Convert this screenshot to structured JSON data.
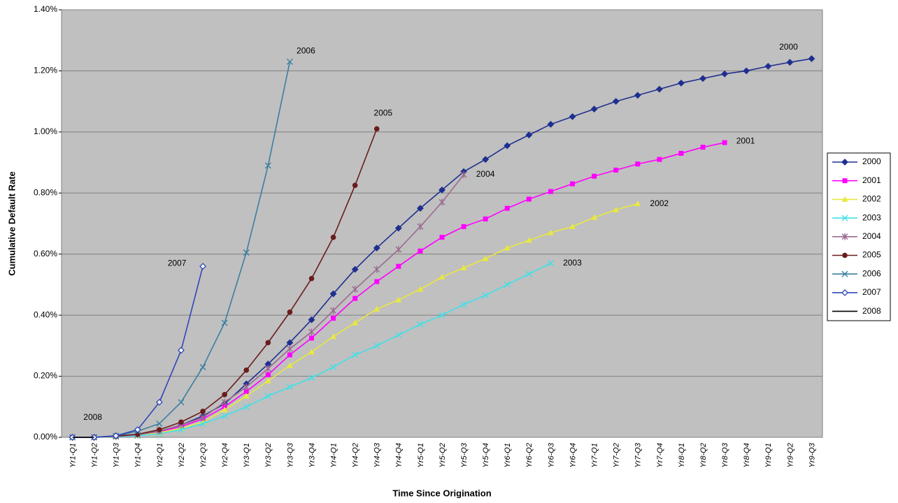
{
  "chart_data": {
    "type": "line",
    "y_label": "Cumulative Default Rate",
    "x_label": "Time Since Origination",
    "categories": [
      "Yr1-Q1",
      "Yr1-Q2",
      "Yr1-Q3",
      "Yr1-Q4",
      "Yr2-Q1",
      "Yr2-Q2",
      "Yr2-Q3",
      "Yr2-Q4",
      "Yr3-Q1",
      "Yr3-Q2",
      "Yr3-Q3",
      "Yr3-Q4",
      "Yr4-Q1",
      "Yr4-Q2",
      "Yr4-Q3",
      "Yr4-Q4",
      "Yr5-Q1",
      "Yr5-Q2",
      "Yr5-Q3",
      "Yr5-Q4",
      "Yr6-Q1",
      "Yr6-Q2",
      "Yr6-Q3",
      "Yr6-Q4",
      "Yr7-Q1",
      "Yr7-Q2",
      "Yr7-Q3",
      "Yr7-Q4",
      "Yr8-Q1",
      "Yr8-Q2",
      "Yr8-Q3",
      "Yr8-Q4",
      "Yr9-Q1",
      "Yr9-Q2",
      "Yr9-Q3"
    ],
    "ylim": [
      0,
      1.4
    ],
    "yticks": [
      {
        "value": 0,
        "label": "0.00%"
      },
      {
        "value": 0.2,
        "label": "0.20%"
      },
      {
        "value": 0.4,
        "label": "0.40%"
      },
      {
        "value": 0.6,
        "label": "0.60%"
      },
      {
        "value": 0.8,
        "label": "0.80%"
      },
      {
        "value": 1.0,
        "label": "1.00%"
      },
      {
        "value": 1.2,
        "label": "1.20%"
      },
      {
        "value": 1.4,
        "label": "1.40%"
      }
    ],
    "grid": true,
    "legend": "right",
    "series": [
      {
        "name": "2000",
        "color": "#1f2f8f",
        "marker": "diamond",
        "values": [
          0,
          0,
          0.005,
          0.01,
          0.02,
          0.04,
          0.07,
          0.11,
          0.175,
          0.24,
          0.31,
          0.385,
          0.47,
          0.55,
          0.62,
          0.685,
          0.75,
          0.81,
          0.87,
          0.91,
          0.955,
          0.99,
          1.025,
          1.05,
          1.075,
          1.1,
          1.12,
          1.14,
          1.16,
          1.175,
          1.19,
          1.2,
          1.215,
          1.228,
          1.24
        ]
      },
      {
        "name": "2001",
        "color": "#ff00ff",
        "marker": "square",
        "values": [
          0,
          0,
          0.003,
          0.008,
          0.018,
          0.035,
          0.06,
          0.1,
          0.15,
          0.205,
          0.27,
          0.325,
          0.39,
          0.455,
          0.51,
          0.56,
          0.61,
          0.655,
          0.69,
          0.715,
          0.75,
          0.78,
          0.805,
          0.83,
          0.855,
          0.875,
          0.895,
          0.91,
          0.93,
          0.95,
          0.965,
          null,
          null,
          null,
          null
        ]
      },
      {
        "name": "2002",
        "color": "#e8e840",
        "marker": "triangle",
        "values": [
          0,
          0,
          0.002,
          0.006,
          0.015,
          0.03,
          0.05,
          0.09,
          0.135,
          0.185,
          0.235,
          0.28,
          0.33,
          0.375,
          0.42,
          0.45,
          0.485,
          0.525,
          0.555,
          0.585,
          0.62,
          0.645,
          0.67,
          0.69,
          0.72,
          0.745,
          0.765,
          null,
          null,
          null,
          null,
          null,
          null,
          null,
          null
        ]
      },
      {
        "name": "2003",
        "color": "#40e0e8",
        "marker": "x",
        "values": [
          0,
          0,
          0.002,
          0.005,
          0.012,
          0.025,
          0.045,
          0.07,
          0.1,
          0.135,
          0.165,
          0.195,
          0.23,
          0.27,
          0.3,
          0.335,
          0.37,
          0.4,
          0.435,
          0.465,
          0.5,
          0.535,
          0.57,
          null,
          null,
          null,
          null,
          null,
          null,
          null,
          null,
          null,
          null,
          null,
          null
        ]
      },
      {
        "name": "2004",
        "color": "#9a6a90",
        "marker": "asterisk",
        "values": [
          0,
          0,
          0.003,
          0.008,
          0.02,
          0.04,
          0.065,
          0.115,
          0.165,
          0.225,
          0.29,
          0.345,
          0.415,
          0.485,
          0.55,
          0.615,
          0.69,
          0.77,
          0.86,
          null,
          null,
          null,
          null,
          null,
          null,
          null,
          null,
          null,
          null,
          null,
          null,
          null,
          null,
          null,
          null
        ]
      },
      {
        "name": "2005",
        "color": "#6a1c1c",
        "marker": "circle",
        "values": [
          0,
          0,
          0.004,
          0.01,
          0.025,
          0.05,
          0.085,
          0.14,
          0.22,
          0.31,
          0.41,
          0.52,
          0.655,
          0.825,
          1.01,
          null,
          null,
          null,
          null,
          null,
          null,
          null,
          null,
          null,
          null,
          null,
          null,
          null,
          null,
          null,
          null,
          null,
          null,
          null,
          null
        ]
      },
      {
        "name": "2006",
        "color": "#3a7fa0",
        "marker": "x",
        "values": [
          0,
          0,
          0.005,
          0.02,
          0.045,
          0.115,
          0.23,
          0.375,
          0.605,
          0.89,
          1.23,
          null,
          null,
          null,
          null,
          null,
          null,
          null,
          null,
          null,
          null,
          null,
          null,
          null,
          null,
          null,
          null,
          null,
          null,
          null,
          null,
          null,
          null,
          null,
          null
        ]
      },
      {
        "name": "2007",
        "color": "#2e46b5",
        "marker": "open-diamond",
        "values": [
          0,
          0,
          0.005,
          0.025,
          0.115,
          0.285,
          0.56,
          null,
          null,
          null,
          null,
          null,
          null,
          null,
          null,
          null,
          null,
          null,
          null,
          null,
          null,
          null,
          null,
          null,
          null,
          null,
          null,
          null,
          null,
          null,
          null,
          null,
          null,
          null,
          null
        ]
      },
      {
        "name": "2008",
        "color": "#000000",
        "marker": "none",
        "values": [
          0,
          0,
          null,
          null,
          null,
          null,
          null,
          null,
          null,
          null,
          null,
          null,
          null,
          null,
          null,
          null,
          null,
          null,
          null,
          null,
          null,
          null,
          null,
          null,
          null,
          null,
          null,
          null,
          null,
          null,
          null,
          null,
          null,
          null,
          null
        ]
      }
    ]
  }
}
